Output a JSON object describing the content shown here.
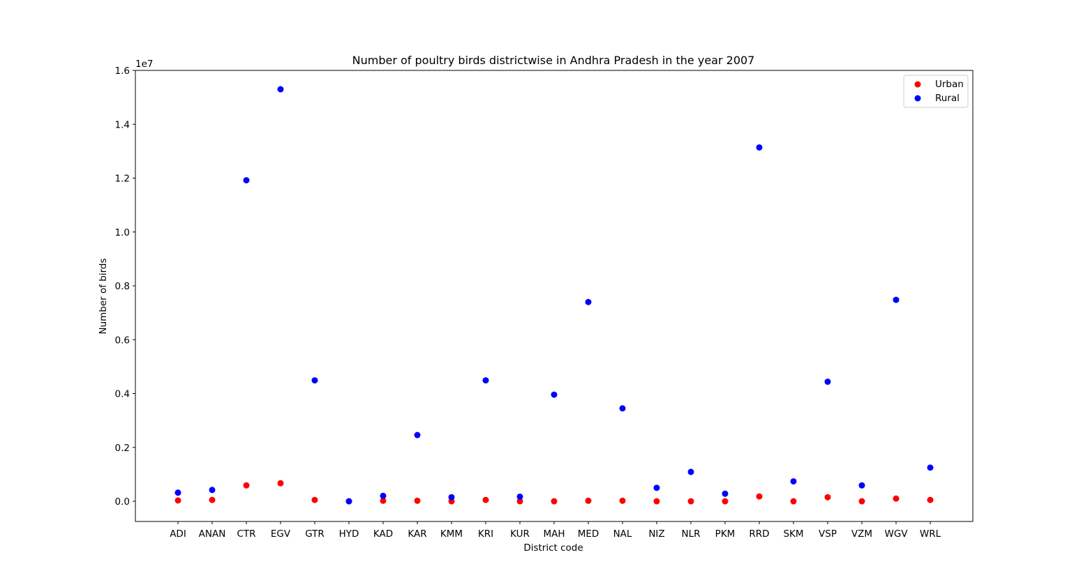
{
  "chart_data": {
    "type": "scatter",
    "title": "Number of poultry birds districtwise in Andhra Pradesh in the year 2007",
    "xlabel": "District code",
    "ylabel": "Number of birds",
    "y_offset_label": "1e7",
    "y_scale": 10000000,
    "ylim": [
      -0.075,
      1.6
    ],
    "y_ticks": [
      0.0,
      0.2,
      0.4,
      0.6,
      0.8,
      1.0,
      1.2,
      1.4,
      1.6
    ],
    "y_tick_labels": [
      "0.0",
      "0.2",
      "0.4",
      "0.6",
      "0.8",
      "1.0",
      "1.2",
      "1.4",
      "1.6"
    ],
    "grid": false,
    "legend_position": "top-right",
    "categories": [
      "ADI",
      "ANAN",
      "CTR",
      "EGV",
      "GTR",
      "HYD",
      "KAD",
      "KAR",
      "KMM",
      "KRI",
      "KUR",
      "MAH",
      "MED",
      "NAL",
      "NIZ",
      "NLR",
      "PKM",
      "RRD",
      "SKM",
      "VSP",
      "VZM",
      "WGV",
      "WRL"
    ],
    "series": [
      {
        "name": "Urban",
        "color": "#ff0000",
        "values": [
          0.003,
          0.005,
          0.059,
          0.067,
          0.005,
          0.0,
          0.002,
          0.002,
          0.0,
          0.005,
          0.0,
          0.0,
          0.002,
          0.002,
          0.0,
          0.0,
          0.0,
          0.018,
          0.0,
          0.015,
          0.0,
          0.01,
          0.005
        ]
      },
      {
        "name": "Rural",
        "color": "#0000ff",
        "values": [
          0.032,
          0.042,
          1.192,
          1.53,
          0.449,
          0.0,
          0.02,
          0.246,
          0.015,
          0.449,
          0.017,
          0.396,
          0.74,
          0.345,
          0.05,
          0.109,
          0.028,
          1.314,
          0.074,
          0.444,
          0.059,
          0.748,
          0.125
        ]
      }
    ]
  }
}
